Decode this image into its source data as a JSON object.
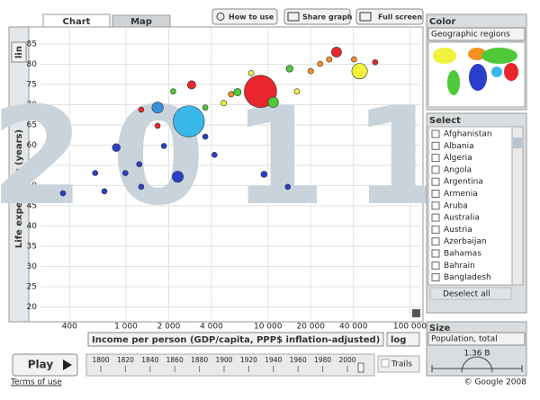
{
  "tabs": {
    "chart": "Chart",
    "map": "Map"
  },
  "toolbar": {
    "how_to_use": "How to use",
    "share_graph": "Share graph",
    "full_screen": "Full screen"
  },
  "chart_data": {
    "type": "scatter",
    "y_label": "Life expectancy (years)",
    "x_label": "Income per person (GDP/capita, PPP$ inflation-adjusted)",
    "annotation": "2011",
    "xscale": "log",
    "yscale": "lin",
    "grid": true,
    "xlim": [
      250,
      120000
    ],
    "ylim": [
      17,
      89
    ],
    "xticks": [
      400,
      {
        "value": 1000,
        "label": "1 000"
      },
      {
        "value": 2000,
        "label": "2 000"
      },
      {
        "value": 4000,
        "label": "4 000"
      },
      {
        "value": 10000,
        "label": "10 000"
      },
      {
        "value": 20000,
        "label": "20 000"
      },
      {
        "value": 40000,
        "label": "40 000"
      },
      {
        "value": 100000,
        "label": "100 000"
      }
    ],
    "yticks": [
      20,
      25,
      30,
      35,
      40,
      45,
      50,
      55,
      60,
      65,
      70,
      75,
      80,
      85
    ],
    "x": [
      8850,
      2770,
      360,
      855,
      2315,
      9380,
      44200,
      30400,
      2900,
      1670,
      1670,
      14200,
      6100,
      10900,
      5500,
      4880,
      3620,
      1280,
      1240,
      990,
      607,
      705,
      1850,
      4200,
      20000,
      23300,
      27000,
      40400,
      56900,
      16000,
      7620,
      2150,
      3620,
      13800,
      1280
    ],
    "values": [
      73.3,
      65.9,
      48.1,
      59.4,
      52.2,
      52.8,
      78.3,
      83,
      74.9,
      69.3,
      64.8,
      78.9,
      73.1,
      70.6,
      72.6,
      70.4,
      69.3,
      68.8,
      55.3,
      53.1,
      53.1,
      48.6,
      59.8,
      57.6,
      78.3,
      80.1,
      81.2,
      81.2,
      80.5,
      73.3,
      77.8,
      73.3,
      62.1,
      49.7,
      49.7
    ],
    "sizes": [
      1340,
      1240,
      30,
      80,
      160,
      50,
      310,
      127,
      90,
      160,
      20,
      60,
      70,
      140,
      40,
      40,
      20,
      20,
      20,
      15,
      15,
      20,
      20,
      12,
      40,
      25,
      40,
      25,
      10,
      12,
      20,
      12,
      12,
      8,
      15
    ],
    "colors": [
      "#e8262b",
      "#39b7e8",
      "#2a3fc9",
      "#2a3fc9",
      "#2a3fc9",
      "#2a3fc9",
      "#f1f23b",
      "#e8262b",
      "#e8262b",
      "#3a8fdd",
      "#e8262b",
      "#4fc93a",
      "#4fc93a",
      "#4fc93a",
      "#f5901e",
      "#f1f23b",
      "#4fc93a",
      "#e8262b",
      "#2a3fc9",
      "#2a3fc9",
      "#2a3fc9",
      "#2a3fc9",
      "#2a3fc9",
      "#2a3fc9",
      "#f5901e",
      "#f5901e",
      "#f5901e",
      "#f5901e",
      "#e8262b",
      "#f1f23b",
      "#f1f23b",
      "#4fc93a",
      "#2a3fc9",
      "#2a3fc9",
      "#2a3fc9"
    ]
  },
  "color_panel": {
    "title": "Color",
    "dropdown": "Geographic regions"
  },
  "select_panel": {
    "title": "Select",
    "countries": [
      "Afghanistan",
      "Albania",
      "Algeria",
      "Angola",
      "Argentina",
      "Armenia",
      "Aruba",
      "Australia",
      "Austria",
      "Azerbaijan",
      "Bahamas",
      "Bahrain",
      "Bangladesh"
    ],
    "deselect": "Deselect all"
  },
  "size_panel": {
    "title": "Size",
    "dropdown": "Population, total",
    "max_label": "1.36 B"
  },
  "timeline": {
    "play": "Play",
    "years": [
      1800,
      1820,
      1840,
      1860,
      1880,
      1900,
      1920,
      1940,
      1960,
      1980,
      2000
    ],
    "trails": "Trails"
  },
  "footer": {
    "terms": "Terms of use",
    "copyright": "© Google 2008"
  }
}
